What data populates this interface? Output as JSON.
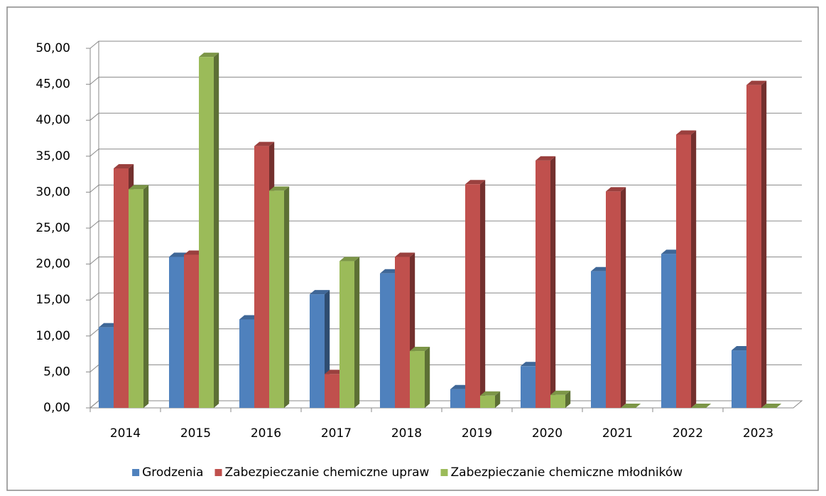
{
  "chart_data": {
    "type": "bar3d",
    "categories": [
      "2014",
      "2015",
      "2016",
      "2017",
      "2018",
      "2019",
      "2020",
      "2021",
      "2022",
      "2023"
    ],
    "series": [
      {
        "name": "Grodzenia",
        "color": "#4f81bd",
        "values": [
          11.2,
          21.0,
          12.3,
          15.8,
          18.7,
          2.6,
          5.8,
          19.0,
          21.4,
          8.0
        ]
      },
      {
        "name": "Zabezpieczanie chemiczne upraw",
        "color": "#c0504d",
        "values": [
          33.3,
          21.3,
          36.4,
          4.7,
          21.0,
          31.1,
          34.4,
          30.1,
          38.0,
          44.9
        ]
      },
      {
        "name": "Zabezpieczanie chemiczne młodników",
        "color": "#9bbb59",
        "values": [
          30.4,
          48.8,
          30.2,
          20.4,
          7.9,
          1.7,
          1.8,
          0,
          0,
          0
        ]
      }
    ],
    "ylim": [
      0,
      50
    ],
    "yticks": [
      {
        "value": 0,
        "label": "0,00"
      },
      {
        "value": 5,
        "label": "5,00"
      },
      {
        "value": 10,
        "label": "10,00"
      },
      {
        "value": 15,
        "label": "15,00"
      },
      {
        "value": 20,
        "label": "20,00"
      },
      {
        "value": 25,
        "label": "25,00"
      },
      {
        "value": 30,
        "label": "30,00"
      },
      {
        "value": 35,
        "label": "35,00"
      },
      {
        "value": 40,
        "label": "40,00"
      },
      {
        "value": 45,
        "label": "45,00"
      },
      {
        "value": 50,
        "label": "50,00"
      }
    ],
    "grid": true,
    "legend": "bottom"
  }
}
